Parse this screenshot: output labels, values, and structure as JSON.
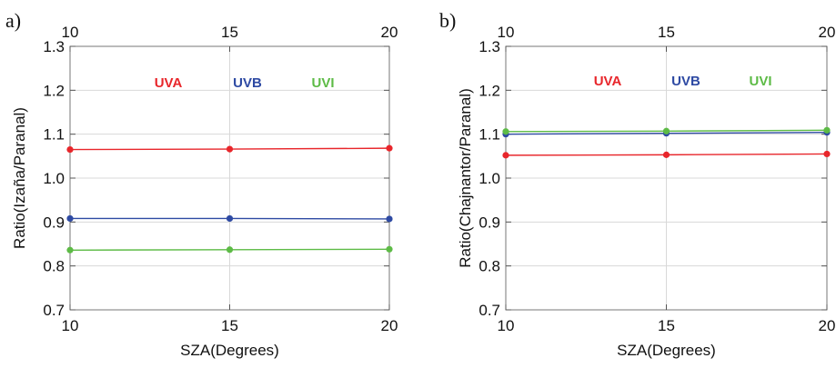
{
  "chart_data": [
    {
      "panel": "a)",
      "type": "line",
      "x": [
        10,
        15,
        20
      ],
      "xlabel": "SZA(Degrees)",
      "ylabel": "Ratio(Izaña/Paranal)",
      "xlim": [
        10,
        20
      ],
      "ylim": [
        0.7,
        1.3
      ],
      "xticks": [
        "10",
        "15",
        "20"
      ],
      "top_xticks": [
        "10",
        "15",
        "20"
      ],
      "yticks": [
        "0.7",
        "0.8",
        "0.9",
        "1.0",
        "1.1",
        "1.2",
        "1.3"
      ],
      "grid": true,
      "legend_position": "top",
      "series": [
        {
          "name": "UVA",
          "color": "#e8262b",
          "values": [
            1.065,
            1.066,
            1.068
          ]
        },
        {
          "name": "UVB",
          "color": "#2e4aa3",
          "values": [
            0.908,
            0.908,
            0.907
          ]
        },
        {
          "name": "UVI",
          "color": "#5dbb46",
          "values": [
            0.836,
            0.837,
            0.838
          ]
        }
      ]
    },
    {
      "panel": "b)",
      "type": "line",
      "x": [
        10,
        15,
        20
      ],
      "xlabel": "SZA(Degrees)",
      "ylabel": "Ratio(Chajnantor/Paranal)",
      "xlim": [
        10,
        20
      ],
      "ylim": [
        0.7,
        1.3
      ],
      "xticks": [
        "10",
        "15",
        "20"
      ],
      "top_xticks": [
        "10",
        "15",
        "20"
      ],
      "yticks": [
        "0.7",
        "0.8",
        "0.9",
        "1.0",
        "1.1",
        "1.2",
        "1.3"
      ],
      "grid": true,
      "legend_position": "top",
      "series": [
        {
          "name": "UVA",
          "color": "#e8262b",
          "values": [
            1.052,
            1.053,
            1.055
          ]
        },
        {
          "name": "UVB",
          "color": "#2e4aa3",
          "values": [
            1.1,
            1.102,
            1.104
          ]
        },
        {
          "name": "UVI",
          "color": "#5dbb46",
          "values": [
            1.106,
            1.107,
            1.109
          ]
        }
      ]
    }
  ]
}
